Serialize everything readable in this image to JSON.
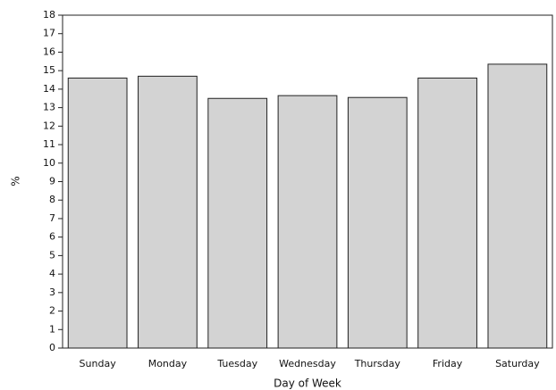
{
  "chart_data": {
    "type": "bar",
    "categories": [
      "Sunday",
      "Monday",
      "Tuesday",
      "Wednesday",
      "Thursday",
      "Friday",
      "Saturday"
    ],
    "values": [
      14.6,
      14.7,
      13.5,
      13.65,
      13.55,
      14.6,
      15.35
    ],
    "color": "#d3d3d3",
    "x_label": "Day of Week",
    "y_label": "%",
    "ylim": [
      0,
      18
    ],
    "yticks": [
      0,
      1,
      2,
      3,
      4,
      5,
      6,
      7,
      8,
      9,
      10,
      11,
      12,
      13,
      14,
      15,
      16,
      17,
      18
    ],
    "grid": false
  }
}
